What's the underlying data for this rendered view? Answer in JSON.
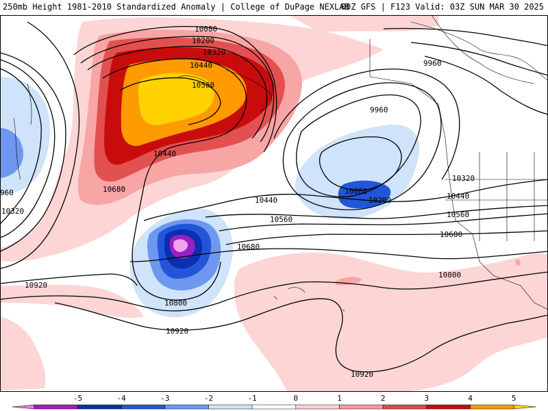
{
  "header": {
    "title_left": "250mb Height 1981-2010 Standardized Anomaly | College of DuPage NEXLAB",
    "title_right": "00Z GFS | F123 Valid: 03Z SUN MAR 30 2025"
  },
  "contour_labels": {
    "c10080_top": "10080",
    "c10200_top": "10200",
    "c10320_top": "10320",
    "c10440_top": "10440",
    "c10560_top": "10560",
    "c10440_mid": "10440",
    "c10680_left": "10680",
    "c960_left": "960",
    "c10320_left": "10320",
    "c9960_ne": "9960",
    "c9960_low": "9960",
    "c10080_low": "10080",
    "c10200_low": "10200",
    "c10440_center": "10440",
    "c10560_center": "10560",
    "c10680_center": "10680",
    "c10320_east": "10320",
    "c10440_east": "10440",
    "c10560_east": "10560",
    "c10680_east": "10680",
    "c10800_east": "10800",
    "c10920_left": "10920",
    "c10800_low": "10800",
    "c10920_bottom": "10920",
    "c10920_south": "10920"
  },
  "colorbar": {
    "ticks": [
      "-5",
      "-4",
      "-3",
      "-2",
      "-1",
      "0",
      "1",
      "2",
      "3",
      "4",
      "5"
    ],
    "colors": [
      "#e77be0",
      "#9b1fbf",
      "#0a2fb0",
      "#2255d8",
      "#6e97ef",
      "#cfe3fa",
      "#ffffff",
      "#fcd2d2",
      "#f59c9c",
      "#e04848",
      "#c80c0c",
      "#ff9a00",
      "#ffd500"
    ]
  },
  "colors": {
    "pos1": "#fdd5d5",
    "pos2": "#f7a5a5",
    "pos3": "#e35050",
    "pos4": "#c80c0c",
    "pos5": "#ff9a00",
    "pos6": "#ffd200",
    "neg1": "#cfe3fa",
    "neg2": "#6e97ef",
    "neg3": "#2255d8",
    "neg4": "#0a2fb0",
    "neg5": "#9b1fbf",
    "neg6": "#f1a0f0"
  }
}
